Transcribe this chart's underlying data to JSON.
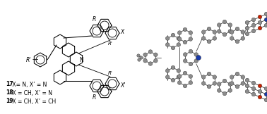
{
  "background_color": "#ffffff",
  "figure_width": 3.78,
  "figure_height": 1.62,
  "dpi": 100,
  "gray": "#8c8c8c",
  "red": "#cc2200",
  "blue": "#1a3aaa",
  "bond_color": "#404040",
  "label_lines": [
    {
      "bold": "17",
      "normal": " X= N, X’ = N"
    },
    {
      "bold": "18",
      "normal": " X = CH, X’ = N"
    },
    {
      "bold": "19",
      "normal": " X = CH, X’ = CH"
    }
  ]
}
